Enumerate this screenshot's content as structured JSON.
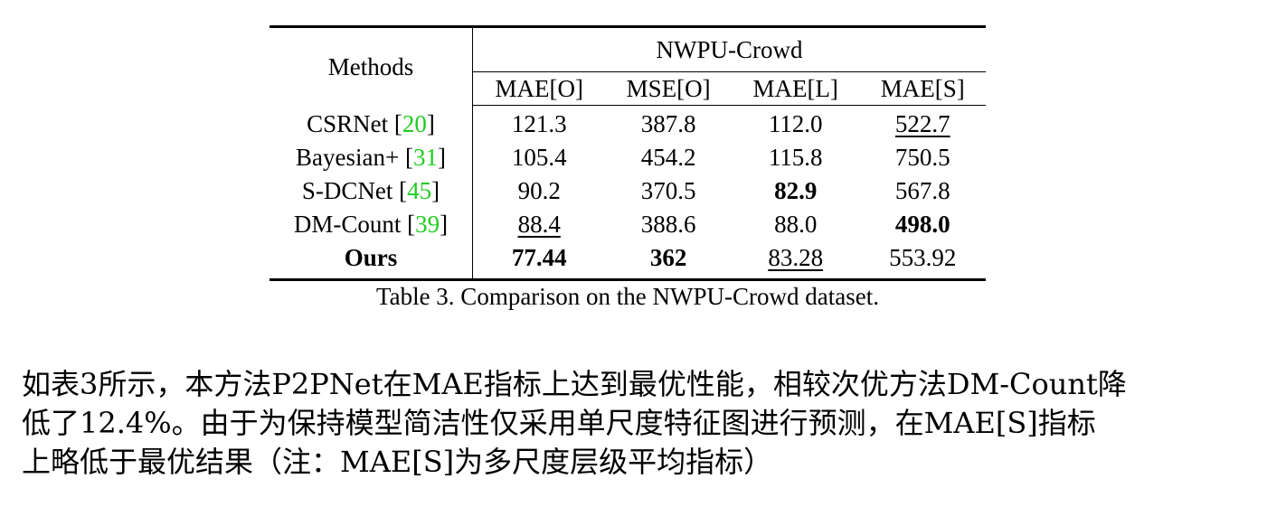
{
  "table": {
    "methods_header": "Methods",
    "group_header": "NWPU-Crowd",
    "columns": [
      "MAE[O]",
      "MSE[O]",
      "MAE[L]",
      "MAE[S]"
    ],
    "rows": [
      {
        "method": "CSRNet",
        "cite": "20",
        "values": [
          "121.3",
          "387.8",
          "112.0",
          "522.7"
        ]
      },
      {
        "method": "Bayesian+",
        "cite": "31",
        "values": [
          "105.4",
          "454.2",
          "115.8",
          "750.5"
        ]
      },
      {
        "method": "S-DCNet",
        "cite": "45",
        "values": [
          "90.2",
          "370.5",
          "82.9",
          "567.8"
        ]
      },
      {
        "method": "DM-Count",
        "cite": "39",
        "values": [
          "88.4",
          "388.6",
          "88.0",
          "498.0"
        ]
      },
      {
        "method": "Ours",
        "cite": "",
        "values": [
          "77.44",
          "362",
          "83.28",
          "553.92"
        ]
      }
    ],
    "caption": "Table 3. Comparison on the NWPU-Crowd dataset."
  },
  "paragraph": {
    "lines": [
      "如表3所示，本方法P2PNet在MAE指标上达到最优性能，相较次优方法DM-Count降",
      "低了12.4%。由于为保持模型简洁性仅采用单尺度特征图进行预测，在MAE[S]指标",
      "上略低于最优结果（注：MAE[S]为多尺度层级平均指标）"
    ]
  },
  "colors": {
    "citation": "#22cc22"
  }
}
